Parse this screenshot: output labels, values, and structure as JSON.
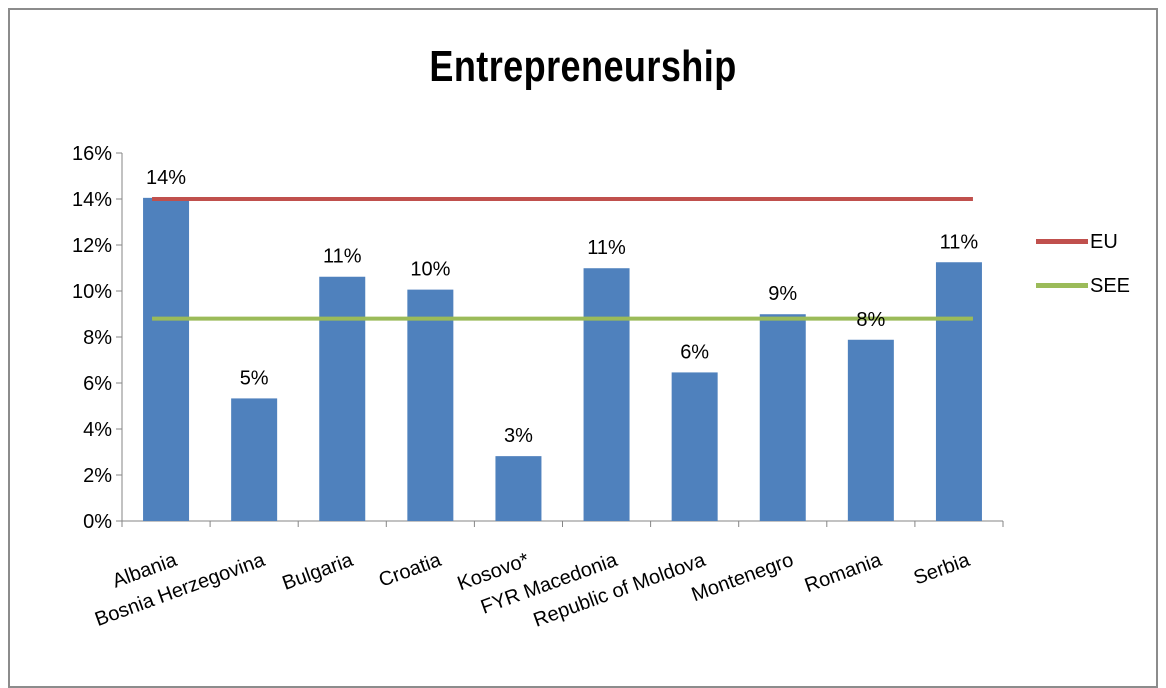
{
  "chart_data": {
    "type": "bar",
    "title": "Entrepreneurship",
    "categories": [
      "Albania",
      "Bosnia Herzegovina",
      "Bulgaria",
      "Croatia",
      "Kosovo*",
      "FYR Macedonia",
      "Republic of Moldova",
      "Montenegro",
      "Romania",
      "Serbia"
    ],
    "series": [
      {
        "values": [
          0.1405,
          0.0533,
          0.1062,
          0.1006,
          0.0282,
          0.1099,
          0.0646,
          0.0899,
          0.0788,
          0.1125
        ],
        "data_labels": [
          "14%",
          "5%",
          "11%",
          "10%",
          "3%",
          "11%",
          "6%",
          "9%",
          "8%",
          "11%"
        ],
        "color": "#4f81bd"
      }
    ],
    "reference_lines": [
      {
        "name": "EU",
        "value": 0.14,
        "color": "#c0504d"
      },
      {
        "name": "SEE",
        "value": 0.088,
        "color": "#9bbb59"
      }
    ],
    "ylim": [
      0,
      0.16
    ],
    "yticks": [
      0,
      0.02,
      0.04,
      0.06,
      0.08,
      0.1,
      0.12,
      0.14,
      0.16
    ],
    "ytick_labels": [
      "0%",
      "2%",
      "4%",
      "6%",
      "8%",
      "10%",
      "12%",
      "14%",
      "16%"
    ],
    "xlabel": "",
    "ylabel": "",
    "grid": false,
    "legend": "right"
  }
}
